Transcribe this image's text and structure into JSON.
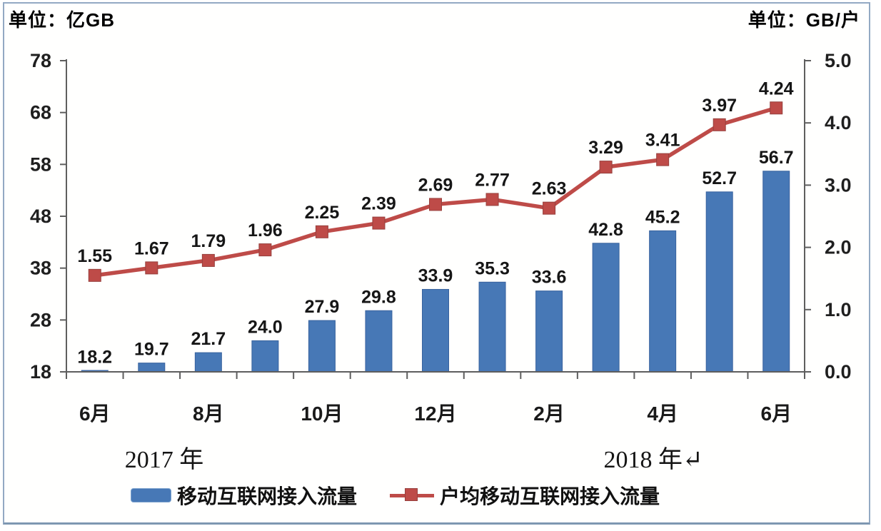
{
  "chart_data": {
    "type": "bar",
    "combo": "bar series on left axis + line series on right axis",
    "title": "",
    "categories": [
      "6月",
      "",
      "8月",
      "",
      "10月",
      "",
      "12月",
      "",
      "2月",
      "",
      "4月",
      "",
      "6月"
    ],
    "series": [
      {
        "name": "移动互联网接入流量",
        "type": "bar",
        "axis": "left",
        "color": "#4778B6",
        "edge_color": "#38629E",
        "values": [
          18.2,
          19.7,
          21.7,
          24.0,
          27.9,
          29.8,
          33.9,
          35.3,
          33.6,
          42.8,
          45.2,
          52.7,
          56.7
        ],
        "labels": [
          "18.2",
          "19.7",
          "21.7",
          "24.0",
          "27.9",
          "29.8",
          "33.9",
          "35.3",
          "33.6",
          "42.8",
          "45.2",
          "52.7",
          "56.7"
        ]
      },
      {
        "name": "户均移动互联网接入流量",
        "type": "line",
        "axis": "right",
        "color": "#BE4B48",
        "marker": "square",
        "marker_edge_color": "#96403D",
        "values": [
          1.55,
          1.67,
          1.79,
          1.96,
          2.25,
          2.39,
          2.69,
          2.77,
          2.63,
          3.29,
          3.41,
          3.97,
          4.24
        ],
        "labels": [
          "1.55",
          "1.67",
          "1.79",
          "1.96",
          "2.25",
          "2.39",
          "2.69",
          "2.77",
          "2.63",
          "3.29",
          "3.41",
          "3.97",
          "4.24"
        ]
      }
    ],
    "left_axis": {
      "unit_label": "单位：亿GB",
      "min": 18,
      "max": 78,
      "tick_step": 10,
      "ticks": [
        "18",
        "28",
        "38",
        "48",
        "58",
        "68",
        "78"
      ]
    },
    "right_axis": {
      "unit_label": "单位：GB/户",
      "min": 0,
      "max": 5,
      "tick_step": 1,
      "ticks": [
        "0.0",
        "1.0",
        "2.0",
        "3.0",
        "4.0",
        "5.0"
      ]
    },
    "year_groups": [
      {
        "label": "2017 年"
      },
      {
        "label": "2018 年↵"
      }
    ],
    "grid": false,
    "legend_position": "bottom",
    "axis_color": "#5E5E5E",
    "label_color": "#161616"
  }
}
